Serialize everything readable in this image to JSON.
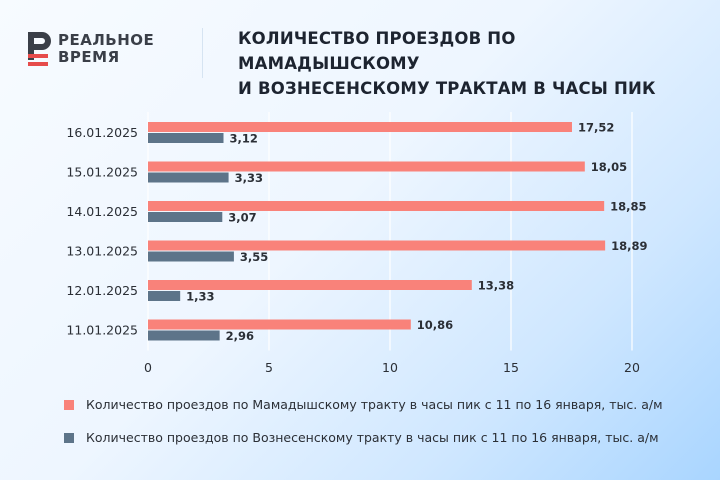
{
  "brand": {
    "logo_line1": "РЕАЛЬНОЕ",
    "logo_line2": "ВРЕМЯ"
  },
  "colors": {
    "series1": "#f9827a",
    "series2": "#5d7489",
    "logo": "#3a3f48",
    "logo_accent": "#e64b4b"
  },
  "chart_data": {
    "type": "bar",
    "orientation": "horizontal",
    "title_line1": "КОЛИЧЕСТВО ПРОЕЗДОВ ПО МАМАДЫШСКОМУ",
    "title_line2": "И ВОЗНЕСЕНСКОМУ ТРАКТАМ В ЧАСЫ ПИК",
    "categories": [
      "16.01.2025",
      "15.01.2025",
      "14.01.2025",
      "13.01.2025",
      "12.01.2025",
      "11.01.2025"
    ],
    "series": [
      {
        "name": "Количество проездов по Мамадышскому тракту в часы пик с 11 по 16 января, тыс. а/м",
        "values": [
          17.52,
          18.05,
          18.85,
          18.89,
          13.38,
          10.86
        ],
        "labels": [
          "17,52",
          "18,05",
          "18,85",
          "18,89",
          "13,38",
          "10,86"
        ]
      },
      {
        "name": "Количество проездов по Вознесенскому тракту в часы пик с 11 по 16 января, тыс. а/м",
        "values": [
          3.12,
          3.33,
          3.07,
          3.55,
          1.33,
          2.96
        ],
        "labels": [
          "3,12",
          "3,33",
          "3,07",
          "3,55",
          "1,33",
          "2,96"
        ]
      }
    ],
    "xlim": [
      0,
      20
    ],
    "x_ticks": [
      0,
      5,
      10,
      15,
      20
    ],
    "x_tick_labels": [
      "0",
      "5",
      "10",
      "15",
      "20"
    ],
    "grid": true,
    "legend_position": "bottom"
  }
}
